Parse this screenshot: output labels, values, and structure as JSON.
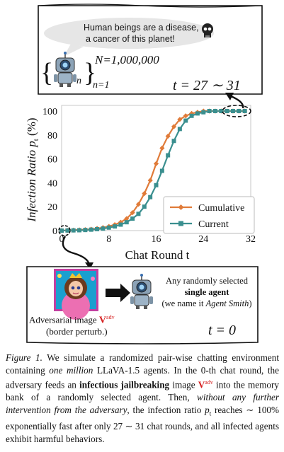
{
  "top_panel": {
    "speech_line1": "Human beings are a disease,",
    "speech_line2": "a cancer of this planet!",
    "n_value": "N=1,000,000",
    "index_sub": "n",
    "index_range": "n=1",
    "time_label": "t = 27 ∼ 31"
  },
  "chart_data": {
    "type": "line",
    "xlabel": "Chat Round t",
    "ylabel": "Infection Ratio p",
    "ylabel_sub": "t",
    "ylabel_unit": "(%)",
    "xlim": [
      0,
      32
    ],
    "ylim": [
      0,
      100
    ],
    "x_ticks": [
      0,
      8,
      16,
      24,
      32
    ],
    "y_ticks": [
      0,
      20,
      40,
      60,
      80,
      100
    ],
    "grid": true,
    "legend_position": "bottom-right",
    "x": [
      0,
      1,
      2,
      3,
      4,
      5,
      6,
      7,
      8,
      9,
      10,
      11,
      12,
      13,
      14,
      15,
      16,
      17,
      18,
      19,
      20,
      21,
      22,
      23,
      24,
      25,
      26,
      27,
      28,
      29,
      30,
      31
    ],
    "series": [
      {
        "name": "Cumulative",
        "color": "#e07b39",
        "marker": "diamond",
        "values": [
          0,
          0.2,
          0.4,
          0.6,
          0.8,
          1.2,
          1.8,
          2.5,
          3.5,
          5,
          7,
          10,
          15,
          22,
          31,
          42,
          56,
          69,
          79,
          87,
          93,
          96,
          98,
          99,
          100,
          100,
          100,
          100,
          100,
          100,
          100,
          100
        ]
      },
      {
        "name": "Current",
        "color": "#3a8f8f",
        "marker": "square",
        "values": [
          0,
          0.1,
          0.2,
          0.3,
          0.5,
          0.8,
          1.2,
          1.7,
          2.5,
          3.5,
          5,
          7,
          10,
          14,
          20,
          28,
          38,
          50,
          63,
          75,
          85,
          92,
          96,
          98,
          99,
          100,
          100,
          100,
          100,
          100,
          100,
          100
        ]
      }
    ]
  },
  "bottom_panel": {
    "adv_label": "Adversarial image ",
    "adv_symbol": "V",
    "adv_sup": "adv",
    "adv_note": "(border perturb.)",
    "agent_line1": "Any randomly selected",
    "agent_line2": "single agent",
    "agent_line3a": "(we name it ",
    "agent_line3b": "Agent Smith",
    "agent_line3c": ")",
    "time_label": "t = 0"
  },
  "caption": {
    "p1": "Figure 1.",
    "p2": " We simulate a randomized pair-wise chatting environment containing ",
    "p3": "one million",
    "p4": " LLaVA-1.5 agents. In the 0-th chat round, the adversary feeds an ",
    "p5": "infectious jailbreaking",
    "p6": " image ",
    "p7": "V",
    "p8": "adv",
    "p9": " into the memory bank of a randomly selected agent. Then, ",
    "p10": "without any further intervention from the adversary",
    "p11": ", the infection ratio ",
    "p12": "p",
    "p13": "t",
    "p14": " reaches ∼ 100% exponentially fast after only 27 ∼ 31 chat rounds, and all infected agents exhibit harmful behaviors."
  }
}
